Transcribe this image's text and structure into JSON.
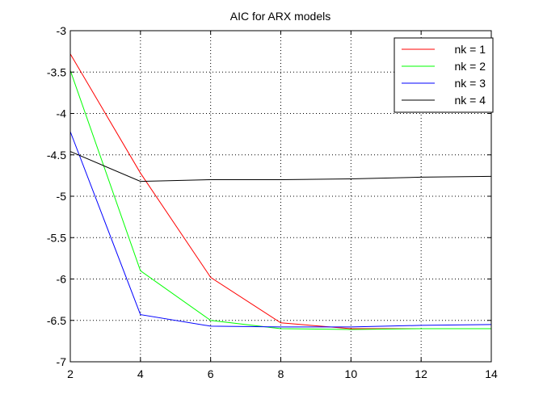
{
  "chart_data": {
    "type": "line",
    "title": "AIC for ARX models",
    "xlabel": "",
    "ylabel": "",
    "xlim": [
      2,
      14
    ],
    "ylim": [
      -7,
      -3
    ],
    "x_ticks": [
      2,
      4,
      6,
      8,
      10,
      12,
      14
    ],
    "y_ticks": [
      -3,
      -3.5,
      -4,
      -4.5,
      -5,
      -5.5,
      -6,
      -6.5,
      -7
    ],
    "grid": true,
    "legend_position": "top-right",
    "series": [
      {
        "name": "nk = 1",
        "color": "#ff0000",
        "x": [
          2,
          4,
          6,
          8,
          10,
          12,
          13
        ],
        "y": [
          -3.28,
          -4.72,
          -5.98,
          -6.53,
          -6.6,
          -6.6,
          -6.6
        ]
      },
      {
        "name": "nk = 2",
        "color": "#00ff00",
        "x": [
          2,
          4,
          6,
          8,
          10,
          12,
          14
        ],
        "y": [
          -3.48,
          -5.9,
          -6.5,
          -6.6,
          -6.61,
          -6.6,
          -6.6
        ]
      },
      {
        "name": "nk = 3",
        "color": "#0000ff",
        "x": [
          2,
          4,
          6,
          8,
          10,
          12,
          14
        ],
        "y": [
          -4.22,
          -6.43,
          -6.57,
          -6.58,
          -6.58,
          -6.56,
          -6.55
        ]
      },
      {
        "name": "nk = 4",
        "color": "#000000",
        "x": [
          2,
          4,
          6,
          8,
          10,
          12,
          14
        ],
        "y": [
          -4.46,
          -4.82,
          -4.8,
          -4.8,
          -4.79,
          -4.77,
          -4.76
        ]
      }
    ]
  }
}
